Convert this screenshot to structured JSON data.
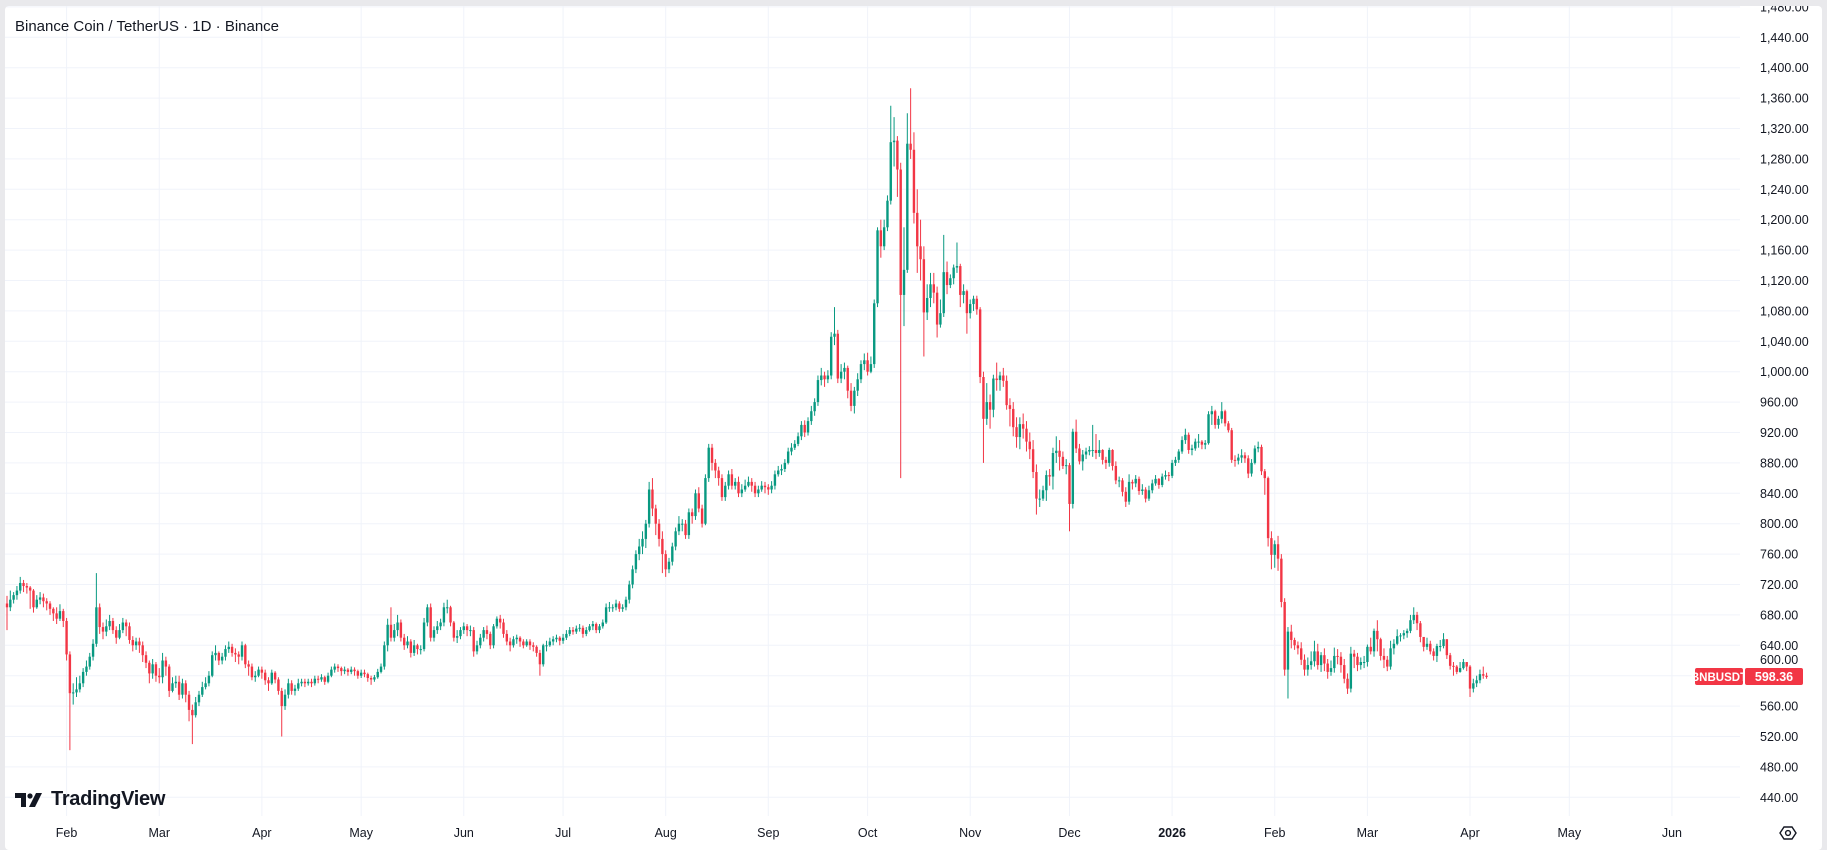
{
  "header": {
    "title": "Binance Coin / TetherUS · 1D · Binance"
  },
  "branding": {
    "logo_text": "TradingView"
  },
  "colors": {
    "up": "#089981",
    "down": "#F23645",
    "grid": "#f0f3fa",
    "text": "#131722"
  },
  "price_label": {
    "symbol": "BNBUSDT",
    "value": "598.36"
  },
  "icons": {
    "settings": "gear-icon"
  },
  "chart_data": {
    "type": "candlestick",
    "title": "Binance Coin / TetherUS · 1D · Binance",
    "interval": "1D",
    "start_date": "2025-01-14",
    "ylim": [
      420,
      1480
    ],
    "grid": true,
    "y_ticks": [
      "1,480.00",
      "1,440.00",
      "1,400.00",
      "1,360.00",
      "1,320.00",
      "1,280.00",
      "1,240.00",
      "1,200.00",
      "1,160.00",
      "1,120.00",
      "1,080.00",
      "1,040.00",
      "1,000.00",
      "960.00",
      "920.00",
      "880.00",
      "840.00",
      "800.00",
      "760.00",
      "720.00",
      "680.00",
      "640.00",
      "600.00",
      "560.00",
      "520.00",
      "480.00",
      "440.00"
    ],
    "y_tick_values": [
      1480,
      1440,
      1400,
      1360,
      1320,
      1280,
      1240,
      1200,
      1160,
      1120,
      1080,
      1040,
      1000,
      960,
      920,
      880,
      840,
      800,
      760,
      720,
      680,
      640,
      600,
      560,
      520,
      480,
      440
    ],
    "x_ticks": [
      {
        "label": "Feb",
        "date": "2025-02-01"
      },
      {
        "label": "Mar",
        "date": "2025-03-01"
      },
      {
        "label": "Apr",
        "date": "2025-04-01"
      },
      {
        "label": "May",
        "date": "2025-05-01"
      },
      {
        "label": "Jun",
        "date": "2025-06-01"
      },
      {
        "label": "Jul",
        "date": "2025-07-01"
      },
      {
        "label": "Aug",
        "date": "2025-08-01"
      },
      {
        "label": "Sep",
        "date": "2025-09-01"
      },
      {
        "label": "Oct",
        "date": "2025-10-01"
      },
      {
        "label": "Nov",
        "date": "2025-11-01"
      },
      {
        "label": "Dec",
        "date": "2025-12-01"
      },
      {
        "label": "2026",
        "date": "2026-01-01"
      },
      {
        "label": "Feb",
        "date": "2026-02-01"
      },
      {
        "label": "Mar",
        "date": "2026-03-01"
      },
      {
        "label": "Apr",
        "date": "2026-04-01"
      },
      {
        "label": "May",
        "date": "2026-05-01"
      },
      {
        "label": "Jun",
        "date": "2026-06-01"
      }
    ],
    "first_open": 695,
    "close": [
      690,
      700,
      706,
      712,
      722,
      718,
      716,
      712,
      690,
      700,
      703,
      698,
      695,
      688,
      682,
      675,
      685,
      672,
      628,
      577,
      578,
      582,
      590,
      605,
      612,
      625,
      642,
      690,
      664,
      658,
      665,
      672,
      660,
      650,
      660,
      670,
      665,
      647,
      640,
      645,
      640,
      627,
      617,
      603,
      615,
      600,
      598,
      620,
      612,
      580,
      590,
      592,
      575,
      590,
      575,
      555,
      548,
      565,
      575,
      585,
      590,
      600,
      627,
      630,
      620,
      625,
      635,
      638,
      630,
      628,
      625,
      640,
      615,
      612,
      598,
      600,
      608,
      604,
      594,
      590,
      604,
      595,
      580,
      560,
      575,
      590,
      580,
      583,
      590,
      592,
      590,
      592,
      590,
      596,
      595,
      598,
      592,
      600,
      608,
      612,
      610,
      606,
      608,
      605,
      608,
      606,
      600,
      604,
      602,
      597,
      595,
      598,
      605,
      612,
      640,
      667,
      650,
      660,
      670,
      650,
      640,
      645,
      630,
      640,
      635,
      635,
      670,
      690,
      650,
      660,
      665,
      670,
      690,
      690,
      670,
      650,
      652,
      660,
      665,
      660,
      660,
      632,
      640,
      650,
      660,
      655,
      640,
      665,
      675,
      670,
      655,
      645,
      640,
      648,
      650,
      645,
      640,
      645,
      640,
      638,
      630,
      615,
      640,
      640,
      645,
      648,
      650,
      646,
      650,
      655,
      660,
      658,
      662,
      663,
      655,
      660,
      665,
      668,
      660,
      665,
      670,
      690,
      690,
      690,
      695,
      688,
      690,
      700,
      720,
      740,
      760,
      770,
      780,
      800,
      845,
      820,
      800,
      780,
      760,
      740,
      750,
      770,
      790,
      800,
      800,
      785,
      815,
      810,
      840,
      820,
      800,
      860,
      900,
      880,
      870,
      860,
      835,
      850,
      865,
      850,
      855,
      840,
      845,
      850,
      855,
      850,
      840,
      845,
      850,
      848,
      845,
      850,
      865,
      870,
      872,
      880,
      895,
      900,
      905,
      915,
      930,
      920,
      935,
      948,
      960,
      989,
      995,
      990,
      995,
      1046,
      1050,
      991,
      1000,
      1005,
      975,
      955,
      975,
      990,
      1010,
      1015,
      1000,
      1010,
      1090,
      1186,
      1165,
      1190,
      1225,
      1302,
      1304,
      1266,
      1101,
      1134,
      1300,
      1292,
      1209,
      1165,
      1148,
      1078,
      1097,
      1115,
      1104,
      1062,
      1077,
      1131,
      1114,
      1123,
      1137,
      1139,
      1101,
      1106,
      1077,
      1089,
      1096,
      1082,
      993,
      938,
      960,
      950,
      991,
      989,
      995,
      988,
      956,
      951,
      927,
      914,
      931,
      925,
      908,
      898,
      868,
      833,
      833,
      844,
      864,
      862,
      893,
      896,
      888,
      876,
      877,
      826,
      921,
      899,
      882,
      891,
      895,
      897,
      897,
      893,
      897,
      884,
      880,
      897,
      876,
      857,
      857,
      842,
      829,
      855,
      853,
      859,
      843,
      845,
      833,
      844,
      853,
      859,
      851,
      862,
      864,
      863,
      880,
      884,
      895,
      910,
      917,
      897,
      899,
      908,
      908,
      904,
      906,
      944,
      948,
      930,
      938,
      948,
      932,
      923,
      884,
      883,
      887,
      890,
      886,
      866,
      880,
      899,
      901,
      869,
      860,
      781,
      759,
      773,
      754,
      697,
      608,
      658,
      647,
      640,
      636,
      621,
      608,
      614,
      619,
      632,
      614,
      627,
      616,
      605,
      610,
      626,
      625,
      614,
      596,
      583,
      629,
      625,
      614,
      618,
      618,
      638,
      632,
      659,
      648,
      626,
      621,
      612,
      636,
      642,
      652,
      653,
      656,
      659,
      673,
      680,
      669,
      651,
      638,
      642,
      632,
      626,
      639,
      639,
      648,
      627,
      613,
      612,
      605,
      610,
      618,
      612,
      583,
      590,
      594,
      602,
      600,
      598.36
    ],
    "high": [
      705,
      712,
      710,
      718,
      730,
      726,
      722,
      718,
      714,
      706,
      710,
      708,
      702,
      698,
      690,
      690,
      694,
      688,
      676,
      632,
      590,
      598,
      600,
      610,
      620,
      630,
      648,
      735,
      695,
      670,
      674,
      680,
      676,
      665,
      668,
      676,
      674,
      670,
      652,
      650,
      650,
      645,
      632,
      620,
      622,
      618,
      610,
      630,
      625,
      615,
      598,
      600,
      600,
      596,
      594,
      580,
      562,
      572,
      580,
      592,
      598,
      606,
      632,
      640,
      632,
      630,
      640,
      645,
      642,
      636,
      632,
      645,
      642,
      620,
      616,
      606,
      612,
      612,
      608,
      598,
      608,
      606,
      598,
      584,
      582,
      596,
      594,
      588,
      596,
      596,
      596,
      596,
      596,
      600,
      600,
      602,
      600,
      604,
      612,
      616,
      615,
      612,
      612,
      610,
      612,
      611,
      608,
      608,
      608,
      604,
      600,
      601,
      609,
      616,
      645,
      675,
      690,
      668,
      680,
      674,
      655,
      652,
      648,
      647,
      642,
      640,
      676,
      694,
      695,
      665,
      672,
      675,
      696,
      700,
      692,
      672,
      660,
      664,
      670,
      668,
      666,
      664,
      646,
      655,
      664,
      666,
      658,
      668,
      678,
      680,
      675,
      660,
      650,
      652,
      654,
      652,
      648,
      648,
      648,
      644,
      640,
      634,
      642,
      646,
      650,
      652,
      654,
      652,
      655,
      660,
      664,
      664,
      666,
      668,
      666,
      664,
      668,
      672,
      670,
      668,
      674,
      695,
      697,
      694,
      700,
      698,
      694,
      704,
      725,
      745,
      765,
      780,
      790,
      805,
      855,
      860,
      825,
      806,
      790,
      765,
      755,
      775,
      795,
      810,
      806,
      805,
      820,
      820,
      845,
      848,
      825,
      865,
      905,
      905,
      885,
      875,
      865,
      855,
      870,
      872,
      860,
      862,
      852,
      858,
      862,
      860,
      855,
      850,
      856,
      855,
      852,
      856,
      870,
      876,
      878,
      885,
      900,
      906,
      910,
      920,
      935,
      936,
      940,
      955,
      965,
      995,
      1005,
      1000,
      1002,
      1052,
      1085,
      1055,
      1010,
      1012,
      1008,
      985,
      980,
      998,
      1015,
      1024,
      1025,
      1020,
      1095,
      1190,
      1200,
      1200,
      1232,
      1350,
      1335,
      1310,
      1275,
      1190,
      1340,
      1373,
      1315,
      1240,
      1200,
      1165,
      1115,
      1130,
      1130,
      1112,
      1095,
      1180,
      1145,
      1128,
      1141,
      1170,
      1142,
      1115,
      1108,
      1095,
      1100,
      1100,
      1085,
      1000,
      985,
      970,
      996,
      1012,
      1000,
      1005,
      995,
      965,
      960,
      940,
      940,
      945,
      935,
      920,
      910,
      878,
      845,
      850,
      870,
      872,
      900,
      915,
      910,
      895,
      885,
      880,
      925,
      937,
      905,
      897,
      900,
      902,
      930,
      918,
      910,
      898,
      888,
      900,
      898,
      882,
      862,
      860,
      848,
      865,
      858,
      864,
      862,
      852,
      848,
      850,
      858,
      864,
      860,
      866,
      870,
      868,
      884,
      888,
      898,
      915,
      925,
      920,
      904,
      912,
      918,
      910,
      910,
      948,
      955,
      950,
      942,
      960,
      950,
      935,
      926,
      890,
      892,
      898,
      894,
      890,
      885,
      903,
      908,
      904,
      872,
      862,
      790,
      778,
      784,
      760,
      702,
      664,
      667,
      650,
      645,
      644,
      628,
      624,
      632,
      646,
      642,
      631,
      636,
      622,
      620,
      637,
      635,
      631,
      622,
      603,
      638,
      634,
      630,
      624,
      626,
      641,
      650,
      662,
      673,
      650,
      636,
      626,
      646,
      648,
      661,
      656,
      660,
      662,
      680,
      690,
      684,
      672,
      645,
      650,
      646,
      636,
      642,
      647,
      656,
      648,
      630,
      618,
      614,
      618,
      622,
      618,
      614,
      596,
      600,
      608,
      612,
      604
    ],
    "low": [
      660,
      685,
      695,
      700,
      708,
      710,
      708,
      688,
      683,
      688,
      694,
      690,
      686,
      680,
      672,
      668,
      672,
      664,
      620,
      502,
      562,
      572,
      578,
      585,
      600,
      608,
      620,
      638,
      655,
      648,
      652,
      660,
      655,
      642,
      648,
      656,
      652,
      642,
      632,
      634,
      630,
      618,
      610,
      590,
      596,
      592,
      590,
      590,
      600,
      572,
      578,
      584,
      568,
      570,
      565,
      540,
      510,
      545,
      560,
      572,
      582,
      586,
      598,
      620,
      614,
      615,
      620,
      630,
      625,
      618,
      615,
      620,
      610,
      600,
      594,
      592,
      598,
      596,
      588,
      580,
      588,
      590,
      575,
      520,
      555,
      570,
      575,
      574,
      580,
      586,
      585,
      587,
      585,
      587,
      590,
      592,
      588,
      590,
      598,
      604,
      605,
      600,
      602,
      600,
      602,
      600,
      596,
      597,
      598,
      592,
      588,
      592,
      596,
      603,
      608,
      632,
      645,
      645,
      652,
      645,
      634,
      636,
      624,
      626,
      628,
      628,
      632,
      665,
      645,
      645,
      655,
      660,
      665,
      682,
      665,
      645,
      643,
      648,
      655,
      652,
      652,
      625,
      628,
      636,
      645,
      648,
      635,
      636,
      662,
      662,
      650,
      640,
      632,
      637,
      642,
      638,
      636,
      638,
      634,
      632,
      625,
      600,
      612,
      632,
      638,
      640,
      644,
      640,
      642,
      647,
      652,
      654,
      655,
      658,
      650,
      652,
      658,
      660,
      656,
      656,
      662,
      668,
      684,
      684,
      686,
      684,
      684,
      686,
      695,
      715,
      735,
      752,
      760,
      768,
      795,
      810,
      785,
      770,
      735,
      730,
      735,
      745,
      765,
      785,
      790,
      780,
      780,
      800,
      805,
      815,
      795,
      798,
      855,
      870,
      860,
      850,
      830,
      830,
      845,
      845,
      845,
      835,
      835,
      842,
      848,
      842,
      835,
      835,
      842,
      840,
      838,
      840,
      845,
      862,
      864,
      868,
      878,
      890,
      897,
      902,
      910,
      914,
      916,
      930,
      942,
      955,
      982,
      980,
      985,
      990,
      1035,
      985,
      985,
      990,
      965,
      948,
      945,
      968,
      985,
      1002,
      995,
      998,
      1005,
      1085,
      1150,
      1160,
      1185,
      1220,
      1270,
      1230,
      860,
      1060,
      1130,
      1280,
      1195,
      1130,
      1120,
      1020,
      1068,
      1085,
      1090,
      1045,
      1058,
      1072,
      1102,
      1110,
      1115,
      1130,
      1085,
      1090,
      1050,
      1070,
      1080,
      1075,
      985,
      880,
      930,
      925,
      940,
      975,
      975,
      980,
      950,
      928,
      915,
      900,
      898,
      912,
      895,
      885,
      860,
      812,
      822,
      830,
      830,
      850,
      845,
      880,
      870,
      872,
      865,
      790,
      820,
      893,
      878,
      870,
      885,
      890,
      888,
      885,
      888,
      878,
      872,
      875,
      870,
      852,
      848,
      836,
      822,
      825,
      845,
      848,
      838,
      838,
      828,
      830,
      840,
      850,
      846,
      848,
      858,
      856,
      860,
      876,
      880,
      892,
      905,
      892,
      890,
      896,
      900,
      898,
      898,
      904,
      930,
      925,
      925,
      932,
      928,
      920,
      880,
      875,
      878,
      880,
      880,
      860,
      862,
      878,
      894,
      864,
      838,
      770,
      740,
      742,
      738,
      690,
      600,
      570,
      636,
      634,
      628,
      614,
      600,
      600,
      608,
      612,
      608,
      605,
      606,
      596,
      600,
      604,
      615,
      604,
      590,
      576,
      578,
      610,
      606,
      608,
      610,
      612,
      628,
      625,
      632,
      620,
      610,
      606,
      608,
      628,
      640,
      645,
      648,
      650,
      656,
      668,
      660,
      644,
      632,
      634,
      628,
      620,
      618,
      632,
      636,
      622,
      608,
      600,
      602,
      604,
      608,
      606,
      572,
      578,
      585,
      590,
      596,
      596
    ]
  }
}
